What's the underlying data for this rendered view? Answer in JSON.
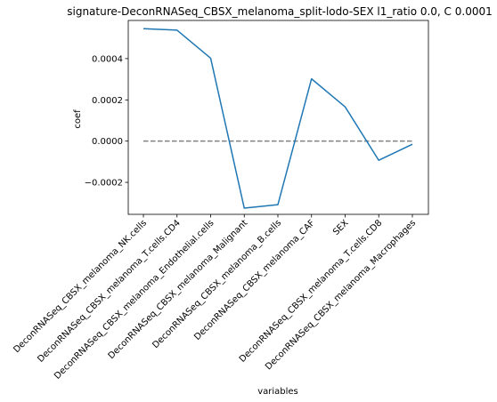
{
  "chart_data": {
    "type": "line",
    "title": "signature-DeconRNASeq_CBSX_melanoma_split-lodo-SEX l1_ratio 0.0, C 0.0001",
    "xlabel": "variables",
    "ylabel": "coef",
    "categories": [
      "DeconRNASeq_CBSX_melanoma_NK.cells",
      "DeconRNASeq_CBSX_melanoma_T.cells.CD4",
      "DeconRNASeq_CBSX_melanoma_Endothelial.cells",
      "DeconRNASeq_CBSX_melanoma_Malignant",
      "DeconRNASeq_CBSX_melanoma_B.cells",
      "DeconRNASeq_CBSX_melanoma_CAF",
      "SEX",
      "DeconRNASeq_CBSX_melanoma_T.cells.CD8",
      "DeconRNASeq_CBSX_melanoma_Macrophages"
    ],
    "series": [
      {
        "values": [
          0.000545,
          0.000538,
          0.000402,
          -0.000325,
          -0.000308,
          0.000302,
          0.000166,
          -9.3e-05,
          -1.5e-05
        ],
        "color": "#1f77b4"
      }
    ],
    "reference_line": {
      "y": 0,
      "style": "dashed",
      "color": "#808080"
    },
    "yticks": [
      -0.0002,
      0.0,
      0.0002,
      0.0004
    ],
    "ytick_labels": [
      "−0.0002",
      "0.0000",
      "0.0002",
      "0.0004"
    ],
    "ylim": [
      -0.000355,
      0.000585
    ],
    "grid": false,
    "legend": "none"
  }
}
